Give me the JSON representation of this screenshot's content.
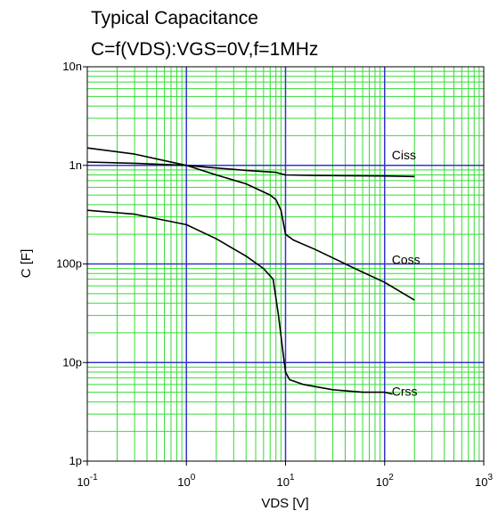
{
  "chart_data": {
    "type": "line",
    "title": "Typical Capacitance",
    "subtitle": "C=f(VDS):VGS=0V,f=1MHz",
    "xlabel": "VDS [V]",
    "ylabel": "C [F]",
    "xscale": "log",
    "yscale": "log",
    "xlim": [
      0.1,
      1000
    ],
    "ylim": [
      1e-12,
      1e-08
    ],
    "grid": true,
    "colors": {
      "minor_grid": "#33dd33",
      "major_grid": "#3333cc",
      "curve": "#000000",
      "frame": "#000000"
    },
    "x_ticks": [
      {
        "value": 0.1,
        "base": "10",
        "exp": "-1"
      },
      {
        "value": 1,
        "base": "10",
        "exp": "0"
      },
      {
        "value": 10,
        "base": "10",
        "exp": "1"
      },
      {
        "value": 100,
        "base": "10",
        "exp": "2"
      },
      {
        "value": 1000,
        "base": "10",
        "exp": "3"
      }
    ],
    "y_ticks": [
      {
        "value": 1e-08,
        "label": "10n"
      },
      {
        "value": 1e-09,
        "label": "1n"
      },
      {
        "value": 1e-10,
        "label": "100p"
      },
      {
        "value": 1e-11,
        "label": "10p"
      },
      {
        "value": 1e-12,
        "label": "1p"
      }
    ],
    "series": [
      {
        "name": "Ciss",
        "label_at": [
          100,
          1.15e-09
        ],
        "points": [
          [
            0.1,
            1.08e-09
          ],
          [
            0.3,
            1.05e-09
          ],
          [
            1,
            1e-09
          ],
          [
            2,
            9.4e-10
          ],
          [
            4,
            8.9e-10
          ],
          [
            8,
            8.5e-10
          ],
          [
            10,
            8e-10
          ],
          [
            20,
            7.9e-10
          ],
          [
            50,
            7.85e-10
          ],
          [
            100,
            7.8e-10
          ],
          [
            200,
            7.7e-10
          ]
        ]
      },
      {
        "name": "Coss",
        "label_at": [
          100,
          1e-10
        ],
        "points": [
          [
            0.1,
            1.5e-09
          ],
          [
            0.3,
            1.3e-09
          ],
          [
            1,
            1e-09
          ],
          [
            2,
            8e-10
          ],
          [
            4,
            6.5e-10
          ],
          [
            7,
            5e-10
          ],
          [
            8,
            4.5e-10
          ],
          [
            9,
            3.5e-10
          ],
          [
            10,
            2e-10
          ],
          [
            12,
            1.75e-10
          ],
          [
            20,
            1.4e-10
          ],
          [
            50,
            9e-11
          ],
          [
            100,
            6.5e-11
          ],
          [
            200,
            4.3e-11
          ]
        ]
      },
      {
        "name": "Crss",
        "label_at": [
          100,
          4.6e-12
        ],
        "points": [
          [
            0.1,
            3.5e-10
          ],
          [
            0.3,
            3.2e-10
          ],
          [
            1,
            2.5e-10
          ],
          [
            2,
            1.8e-10
          ],
          [
            4,
            1.2e-10
          ],
          [
            6,
            9e-11
          ],
          [
            7.5,
            7e-11
          ],
          [
            8.5,
            3e-11
          ],
          [
            9.5,
            1.2e-11
          ],
          [
            10,
            8e-12
          ],
          [
            11,
            6.7e-12
          ],
          [
            15,
            6e-12
          ],
          [
            30,
            5.3e-12
          ],
          [
            60,
            5e-12
          ],
          [
            100,
            5e-12
          ],
          [
            120,
            4.8e-12
          ]
        ]
      }
    ]
  }
}
